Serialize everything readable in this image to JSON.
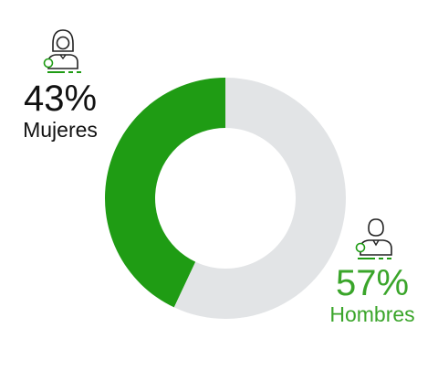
{
  "chart_data": {
    "type": "pie",
    "donut": true,
    "legend": "none",
    "series": [
      {
        "label": "Mujeres",
        "value": 43,
        "display": "43%",
        "color": "#1f9c14",
        "text_color": "#111111"
      },
      {
        "label": "Hombres",
        "value": 57,
        "display": "57%",
        "color": "#e2e4e6",
        "text_color": "#3aa52a"
      }
    ]
  },
  "icons": {
    "women": "woman-icon",
    "men": "man-icon"
  }
}
